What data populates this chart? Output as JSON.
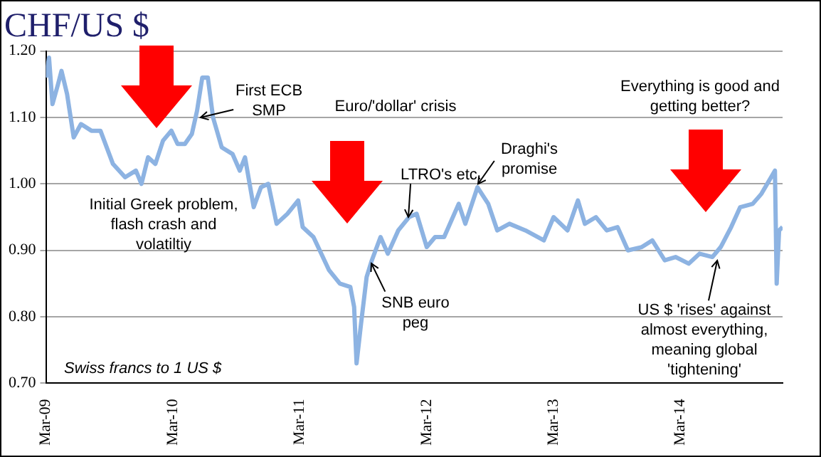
{
  "chart_data": {
    "type": "line",
    "title": "CHF/US $",
    "series": [
      {
        "color": "#8db3e2",
        "x": [
          "2009-03-01",
          "2009-03-10",
          "2009-03-20",
          "2009-04-05",
          "2009-04-15",
          "2009-05-01",
          "2009-05-20",
          "2009-06-10",
          "2009-07-10",
          "2009-08-05",
          "2009-09-10",
          "2009-10-15",
          "2009-11-15",
          "2009-12-01",
          "2009-12-20",
          "2010-01-10",
          "2010-02-01",
          "2010-02-25",
          "2010-03-15",
          "2010-04-05",
          "2010-04-25",
          "2010-05-10",
          "2010-05-25",
          "2010-06-10",
          "2010-06-25",
          "2010-07-20",
          "2010-08-20",
          "2010-09-10",
          "2010-09-25",
          "2010-10-20",
          "2010-11-10",
          "2010-12-01",
          "2010-12-25",
          "2011-01-25",
          "2011-02-25",
          "2011-03-10",
          "2011-04-10",
          "2011-05-25",
          "2011-06-25",
          "2011-07-25",
          "2011-08-05",
          "2011-08-12",
          "2011-08-25",
          "2011-09-10",
          "2011-09-25",
          "2011-10-20",
          "2011-11-10",
          "2011-12-10",
          "2012-01-10",
          "2012-02-01",
          "2012-03-01",
          "2012-03-25",
          "2012-04-20",
          "2012-06-01",
          "2012-06-20",
          "2012-07-25",
          "2012-08-25",
          "2012-09-20",
          "2012-10-25",
          "2012-12-10",
          "2013-02-01",
          "2013-03-01",
          "2013-04-10",
          "2013-05-10",
          "2013-05-30",
          "2013-07-01",
          "2013-08-01",
          "2013-09-01",
          "2013-10-01",
          "2013-11-10",
          "2013-12-10",
          "2014-01-15",
          "2014-02-15",
          "2014-03-25",
          "2014-04-25",
          "2014-06-01",
          "2014-06-25",
          "2014-07-25",
          "2014-08-20",
          "2014-09-25",
          "2014-10-20",
          "2014-11-28",
          "2014-12-03",
          "2014-12-10",
          "2014-12-20"
        ],
        "values": [
          1.16,
          1.19,
          1.12,
          1.15,
          1.17,
          1.135,
          1.07,
          1.09,
          1.08,
          1.08,
          1.03,
          1.01,
          1.02,
          1.0,
          1.04,
          1.03,
          1.065,
          1.08,
          1.06,
          1.06,
          1.075,
          1.11,
          1.16,
          1.16,
          1.1,
          1.055,
          1.045,
          1.02,
          1.04,
          0.965,
          0.995,
          1.0,
          0.94,
          0.955,
          0.975,
          0.935,
          0.92,
          0.87,
          0.85,
          0.845,
          0.815,
          0.73,
          0.79,
          0.86,
          0.885,
          0.92,
          0.895,
          0.93,
          0.95,
          0.955,
          0.905,
          0.92,
          0.92,
          0.97,
          0.94,
          0.995,
          0.97,
          0.93,
          0.94,
          0.93,
          0.915,
          0.95,
          0.93,
          0.975,
          0.94,
          0.95,
          0.93,
          0.935,
          0.9,
          0.905,
          0.915,
          0.885,
          0.89,
          0.88,
          0.895,
          0.89,
          0.905,
          0.935,
          0.965,
          0.97,
          0.985,
          1.02,
          0.85,
          0.93,
          0.935
        ]
      }
    ],
    "xlim": [
      "2009-03-01",
      "2014-12-20"
    ],
    "xticks": [
      {
        "value": "2009-03-01",
        "label": "Mar-09"
      },
      {
        "value": "2010-03-01",
        "label": "Mar-10"
      },
      {
        "value": "2011-03-01",
        "label": "Mar-11"
      },
      {
        "value": "2012-03-01",
        "label": "Mar-12"
      },
      {
        "value": "2013-03-01",
        "label": "Mar-13"
      },
      {
        "value": "2014-03-01",
        "label": "Mar-14"
      }
    ],
    "ylim": [
      0.7,
      1.2
    ],
    "yticks": [
      {
        "value": 0.7,
        "label": "0.70"
      },
      {
        "value": 0.8,
        "label": "0.80"
      },
      {
        "value": 0.9,
        "label": "0.90"
      },
      {
        "value": 1.0,
        "label": "1.00"
      },
      {
        "value": 1.1,
        "label": "1.10"
      },
      {
        "value": 1.2,
        "label": "1.20"
      }
    ],
    "grid": "y",
    "legend": false,
    "marker": "none",
    "line_style": "solid",
    "annotations": [
      {
        "text": "First ECB SMP",
        "x": "2010-05-20",
        "y": 1.1
      },
      "Euro/'dollar' crisis",
      {
        "text": "LTRO's etc.",
        "x": "2012-01-10",
        "y": 0.95
      },
      {
        "text": "Draghi's promise",
        "x": "2012-07-25",
        "y": 1.0
      },
      {
        "text": "SNB euro peg",
        "x": "2011-09-25",
        "y": 0.88
      },
      "Initial Greek problem, flash crash and volatiltiy",
      "Everything is good and getting better?",
      {
        "text": "US $ 'rises' against almost everything, meaning global 'tightening'",
        "x": "2014-06-15",
        "y": 0.885
      },
      "Swiss francs to 1 US $"
    ]
  }
}
